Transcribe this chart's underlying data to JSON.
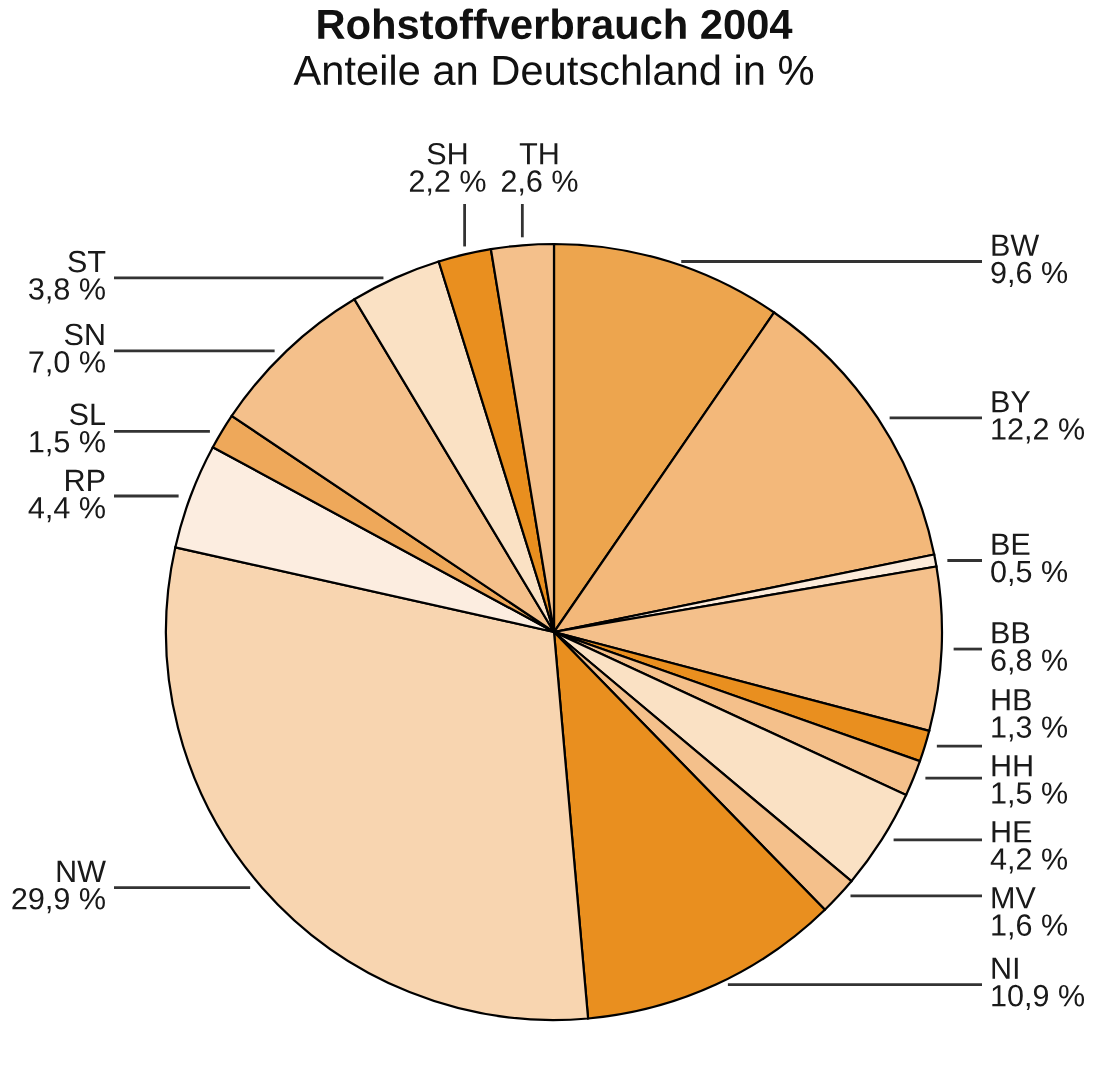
{
  "chart_data": {
    "type": "pie",
    "title": "Rohstoffverbrauch 2004",
    "subtitle": "Anteile an Deutschland in %",
    "categories": [
      "BW",
      "BY",
      "BE",
      "BB",
      "HB",
      "HH",
      "HE",
      "MV",
      "NI",
      "NW",
      "RP",
      "SL",
      "SN",
      "ST",
      "SH",
      "TH"
    ],
    "values": [
      9.6,
      12.2,
      0.5,
      6.8,
      1.3,
      1.5,
      4.2,
      1.6,
      10.9,
      29.9,
      4.4,
      1.5,
      7.0,
      3.8,
      2.2,
      2.6
    ],
    "value_labels": [
      "9,6 %",
      "12,2 %",
      "0,5 %",
      "6,8 %",
      "1,3 %",
      "1,5 %",
      "4,2 %",
      "1,6 %",
      "10,9 %",
      "29,9 %",
      "4,4 %",
      "1,5 %",
      "7,0 %",
      "3,8 %",
      "2,2 %",
      "2,6 %"
    ],
    "colors": [
      "#eda54e",
      "#f3b87a",
      "#fcebda",
      "#f4c08b",
      "#e98f1f",
      "#f4c08b",
      "#fae1c4",
      "#f4c08b",
      "#e98f1f",
      "#f8d5b0",
      "#fcede0",
      "#eea85a",
      "#f4c08b",
      "#fae1c4",
      "#e98f1f",
      "#f4c08b"
    ]
  }
}
